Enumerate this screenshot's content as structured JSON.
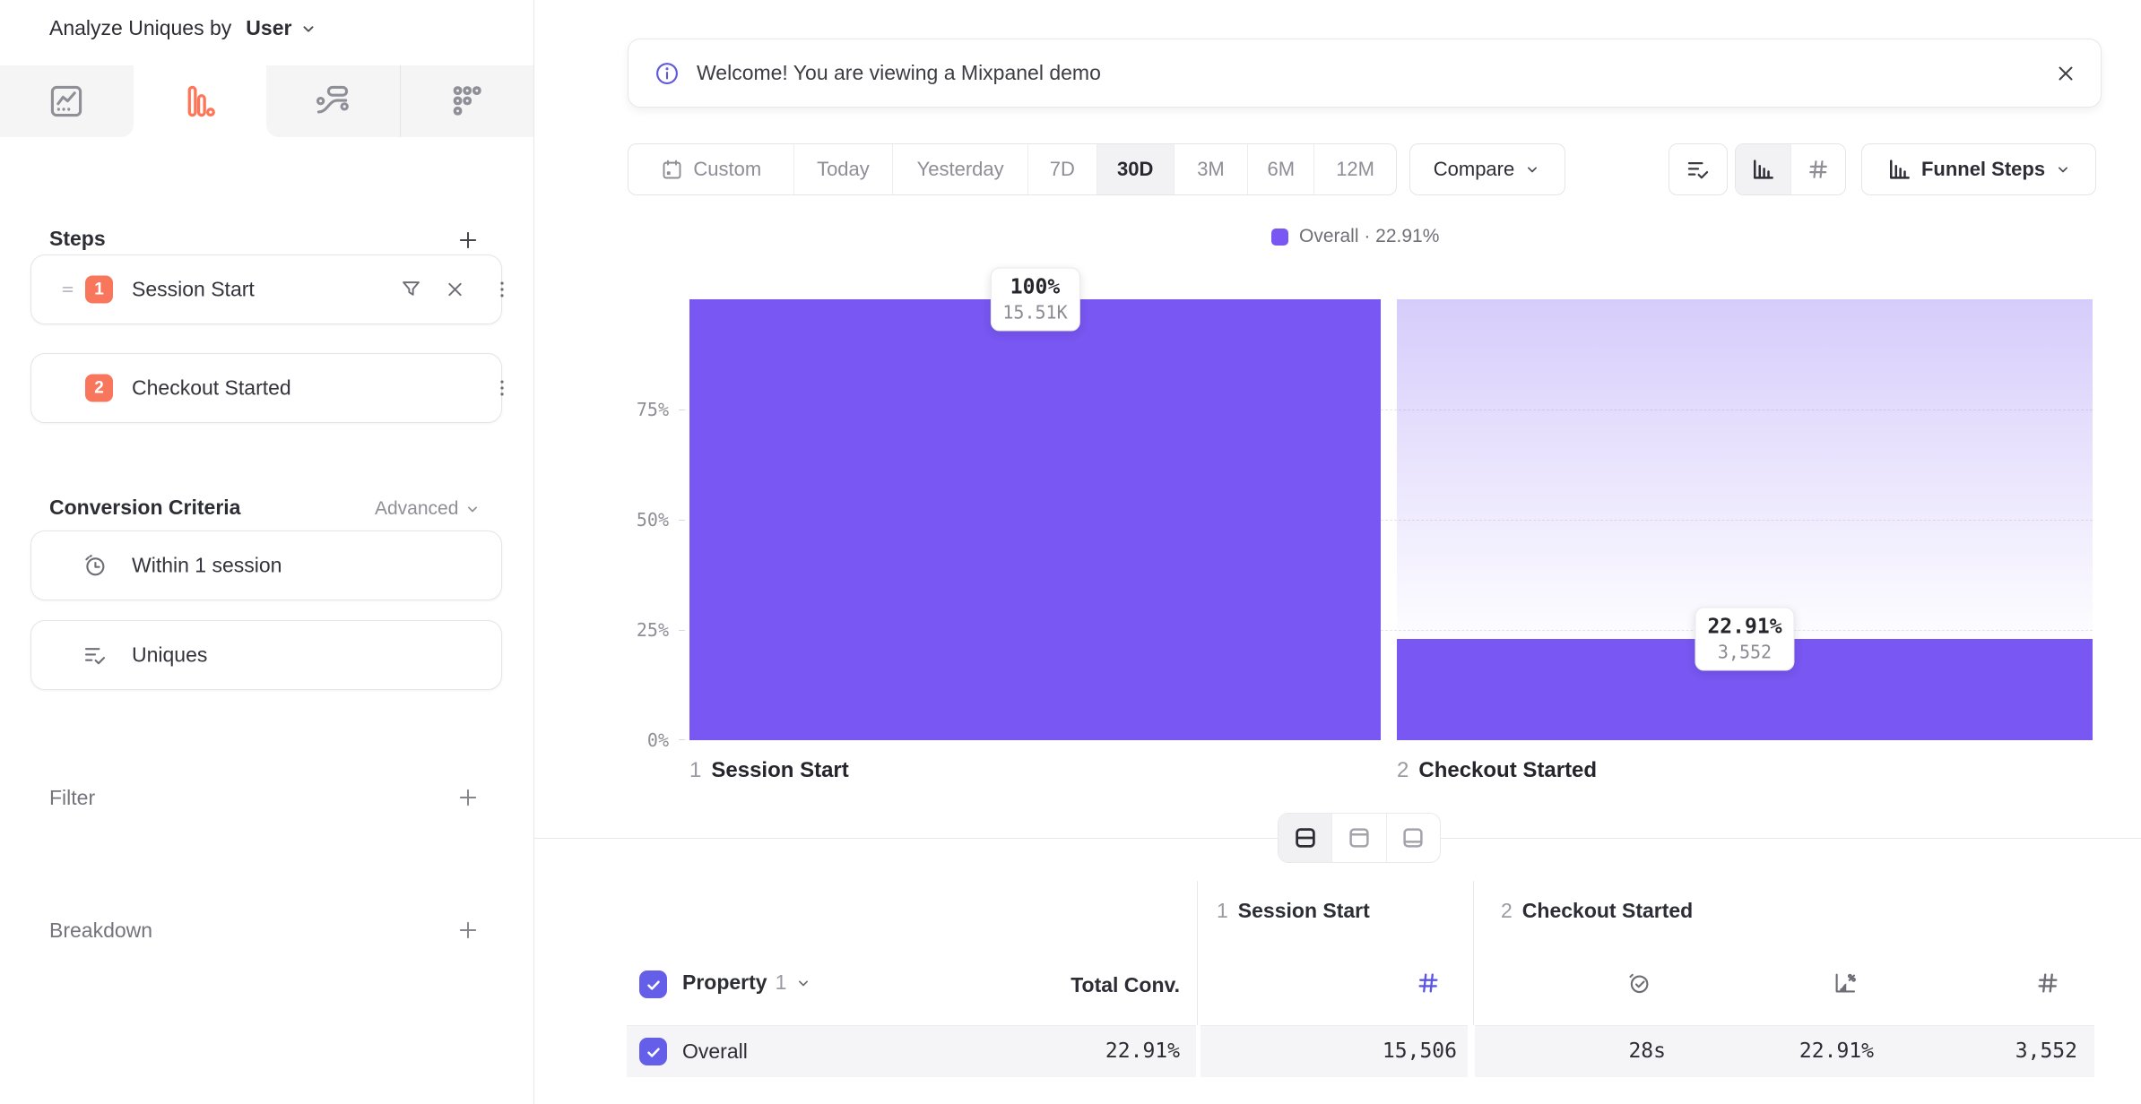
{
  "header": {
    "analyze_prefix": "Analyze Uniques by",
    "analyze_value": "User"
  },
  "sidebar": {
    "steps": {
      "heading": "Steps",
      "items": [
        {
          "num": "1",
          "label": "Session Start"
        },
        {
          "num": "2",
          "label": "Checkout Started"
        }
      ]
    },
    "conversion_criteria": {
      "heading": "Conversion Criteria",
      "advanced_label": "Advanced",
      "within_label": "Within 1 session",
      "uniques_label": "Uniques"
    },
    "filter_label": "Filter",
    "breakdown_label": "Breakdown"
  },
  "banner": {
    "message": "Welcome! You are viewing a Mixpanel demo"
  },
  "toolbar": {
    "ranges": [
      "Custom",
      "Today",
      "Yesterday",
      "7D",
      "30D",
      "3M",
      "6M",
      "12M"
    ],
    "selected_range": "30D",
    "compare_label": "Compare",
    "view_label": "Funnel Steps"
  },
  "chart_data": {
    "type": "bar",
    "title": "Funnel Steps",
    "legend_label": "Overall · 22.91%",
    "category_numbers": [
      "1",
      "2"
    ],
    "categories": [
      "Session Start",
      "Checkout Started"
    ],
    "series": [
      {
        "name": "Overall",
        "values_pct": [
          100,
          22.91
        ],
        "counts": [
          15506,
          3552
        ]
      }
    ],
    "ylim": [
      0,
      100
    ],
    "ytick_labels": [
      "75%",
      "50%",
      "25%",
      "0%"
    ],
    "grid": "dashed-horizontal",
    "legend_position": "top-center",
    "tooltips": [
      {
        "pct": "100%",
        "count": "15.51K"
      },
      {
        "pct": "22.91%",
        "count": "3,552"
      }
    ],
    "colors": {
      "bar": "#7857F2",
      "fade_top": "#DCD2FA"
    }
  },
  "table": {
    "property_label": "Property",
    "property_index": "1",
    "total_conv_label": "Total Conv.",
    "groups": [
      {
        "num": "1",
        "label": "Session Start"
      },
      {
        "num": "2",
        "label": "Checkout Started"
      }
    ],
    "rows": [
      {
        "label": "Overall",
        "total_conv": "22.91%",
        "step1_count": "15,506",
        "avg_time": "28s",
        "conv_rate": "22.91%",
        "step2_count": "3,552"
      }
    ]
  }
}
